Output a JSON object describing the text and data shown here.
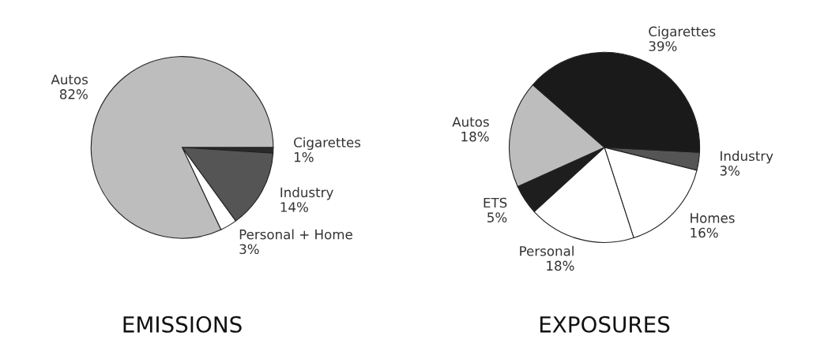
{
  "chart_data": [
    {
      "type": "pie",
      "title": "EMISSIONS",
      "categories": [
        "Cigarettes",
        "Industry",
        "Personal + Home",
        "Autos"
      ],
      "values": [
        1,
        14,
        3,
        82
      ],
      "value_labels": [
        "1%",
        "14%",
        "3%",
        "82%"
      ],
      "colors": [
        "#2a2a2a",
        "#555555",
        "#ffffff",
        "#bdbdbd"
      ]
    },
    {
      "type": "pie",
      "title": "EXPOSURES",
      "categories": [
        "Industry",
        "Homes",
        "Personal",
        "ETS",
        "Autos",
        "Cigarettes"
      ],
      "values": [
        3,
        16,
        18,
        5,
        18,
        39
      ],
      "value_labels": [
        "3%",
        "16%",
        "18%",
        "5%",
        "18%",
        "39%"
      ],
      "colors": [
        "#555555",
        "#ffffff",
        "#ffffff",
        "#1e1e1e",
        "#bdbdbd",
        "#1a1a1a"
      ]
    }
  ]
}
